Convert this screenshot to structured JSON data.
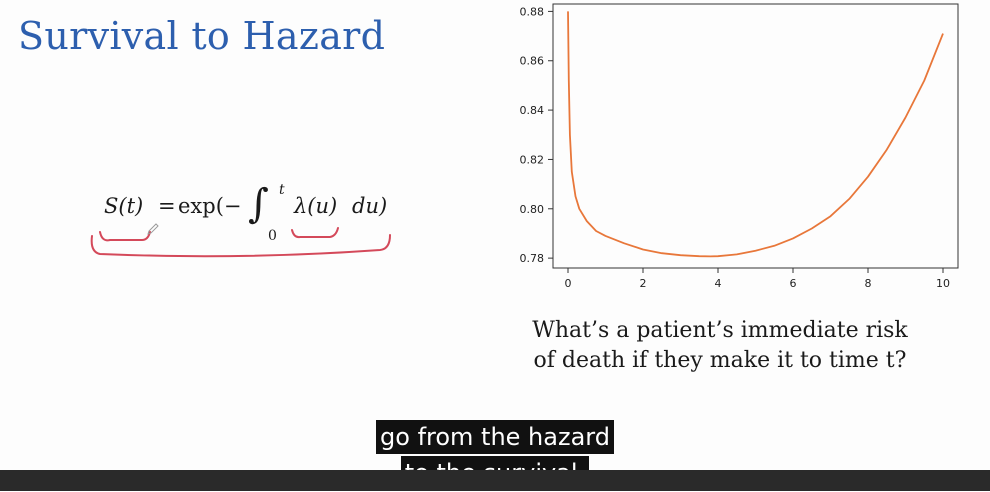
{
  "slide": {
    "title": "Survival to Hazard",
    "formula": {
      "lhs": "S(t)",
      "equals": "=",
      "exp_open": "exp(−",
      "integral_sign": "∫",
      "upper_limit": "t",
      "lower_limit": "0",
      "integrand": "λ(u)",
      "differential": "du)"
    },
    "question": "What’s a patient’s immediate risk of death if they make it to time t?"
  },
  "chart_data": {
    "type": "line",
    "x": [
      0,
      0.02,
      0.05,
      0.1,
      0.2,
      0.3,
      0.5,
      0.75,
      1,
      1.5,
      2,
      2.5,
      3,
      3.5,
      3.8,
      4,
      4.5,
      5,
      5.5,
      6,
      6.5,
      7,
      7.5,
      8,
      8.5,
      9,
      9.5,
      10
    ],
    "series": [
      {
        "color": "#e8773a",
        "values": [
          0.88,
          0.852,
          0.83,
          0.815,
          0.805,
          0.8,
          0.795,
          0.791,
          0.789,
          0.786,
          0.7835,
          0.782,
          0.7812,
          0.7808,
          0.7807,
          0.7808,
          0.7815,
          0.783,
          0.785,
          0.788,
          0.792,
          0.797,
          0.804,
          0.813,
          0.824,
          0.837,
          0.852,
          0.871
        ]
      }
    ],
    "xlim": [
      -0.4,
      10.4
    ],
    "ylim": [
      0.776,
      0.883
    ],
    "xticks": [
      "0",
      "2",
      "4",
      "6",
      "8",
      "10"
    ],
    "xtick_values": [
      0,
      2,
      4,
      6,
      8,
      10
    ],
    "yticks": [
      "0.78",
      "0.80",
      "0.82",
      "0.84",
      "0.86",
      "0.88"
    ],
    "ytick_values": [
      0.78,
      0.8,
      0.82,
      0.84,
      0.86,
      0.88
    ],
    "grid": false,
    "title": "",
    "xlabel": "",
    "ylabel": ""
  },
  "captions": {
    "line1": "go from the hazard",
    "line2": "to the survival."
  },
  "colors": {
    "title": "#2d5fae",
    "annotation": "#d4495a",
    "line": "#e8773a"
  }
}
